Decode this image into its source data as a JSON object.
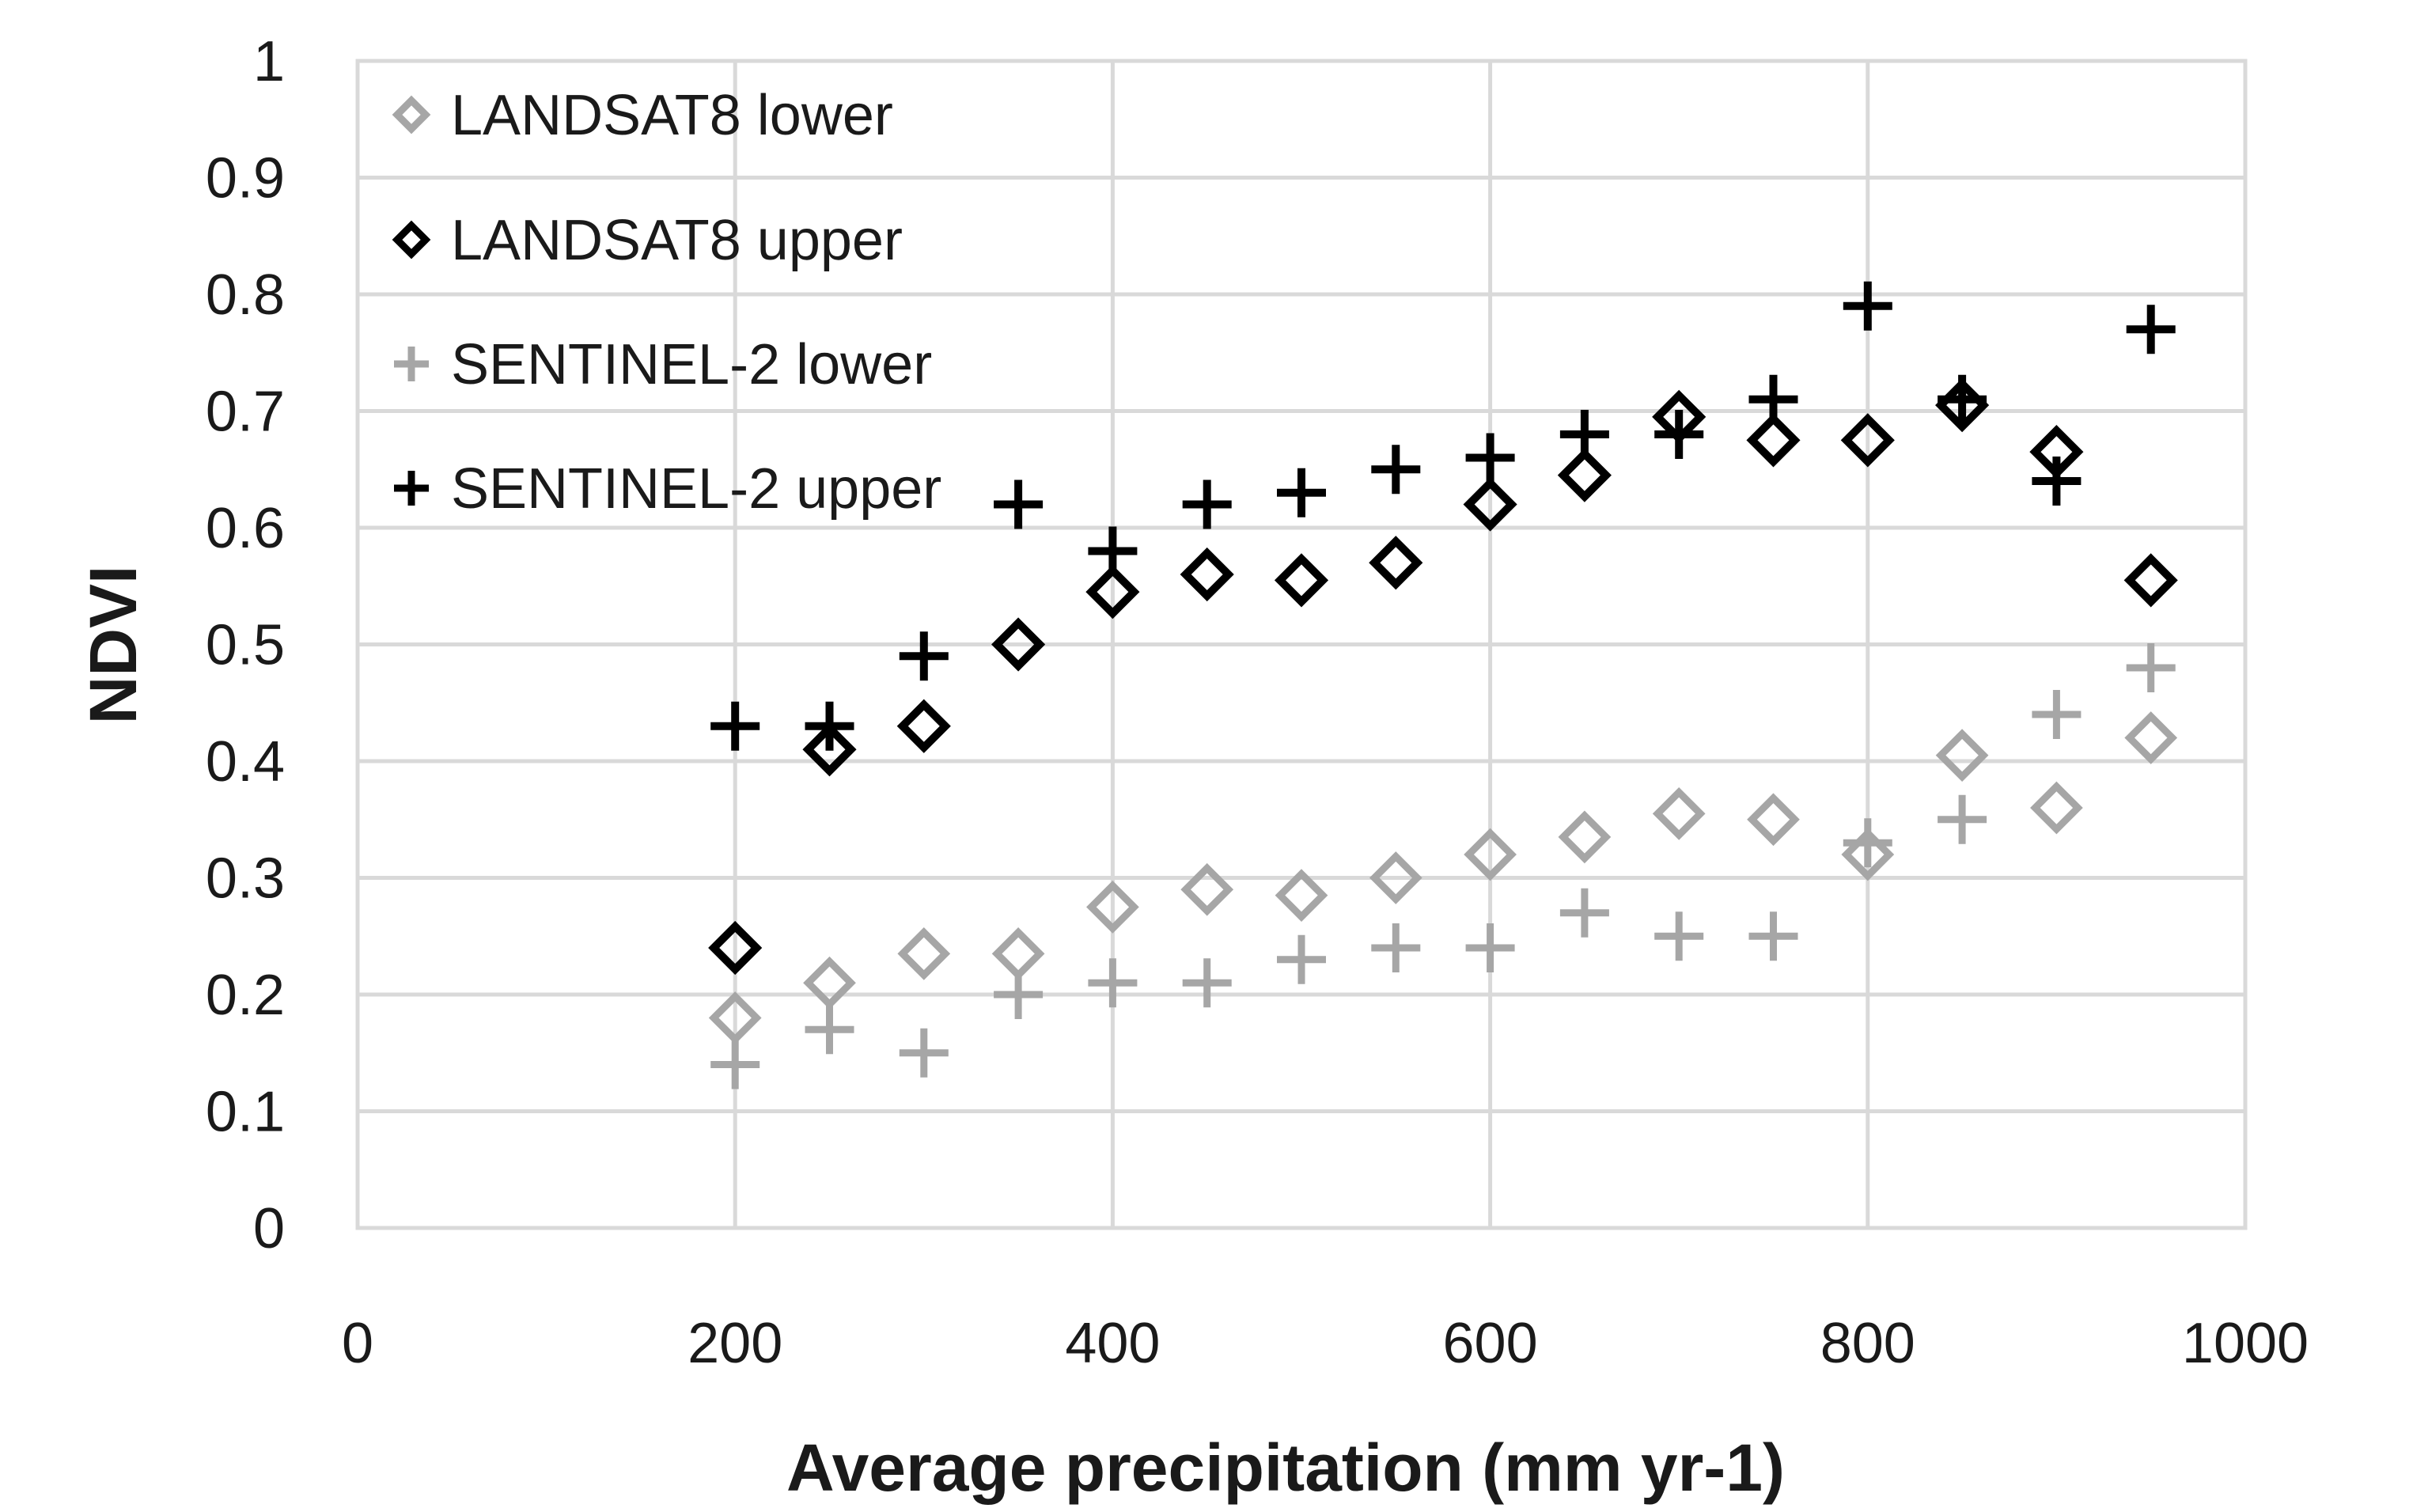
{
  "chart_data": {
    "type": "scatter",
    "title": "",
    "xlabel": "Average precipitation (mm yr-1)",
    "ylabel": "NDVI",
    "xlim": [
      0,
      1000
    ],
    "ylim": [
      0,
      1
    ],
    "x_ticks": [
      "0",
      "200",
      "400",
      "600",
      "800",
      "1000"
    ],
    "y_ticks": [
      "0",
      "0.1",
      "0.2",
      "0.3",
      "0.4",
      "0.5",
      "0.6",
      "0.7",
      "0.8",
      "0.9",
      "1"
    ],
    "grid": true,
    "legend_position": "top-left",
    "x": [
      200,
      250,
      300,
      350,
      400,
      450,
      500,
      550,
      600,
      650,
      700,
      750,
      800,
      850,
      900,
      950
    ],
    "series": [
      {
        "name": "LANDSAT8 lower",
        "marker": "diamond",
        "color": "#a6a6a6",
        "values": [
          0.18,
          0.21,
          0.235,
          0.235,
          0.275,
          0.29,
          0.285,
          0.3,
          0.32,
          0.335,
          0.355,
          0.35,
          0.32,
          0.405,
          0.36,
          0.42
        ]
      },
      {
        "name": "LANDSAT8 upper",
        "marker": "diamond",
        "color": "#000000",
        "values": [
          0.24,
          0.41,
          0.43,
          0.5,
          0.545,
          0.56,
          0.555,
          0.57,
          0.62,
          0.645,
          0.695,
          0.675,
          0.675,
          0.705,
          0.665,
          0.555
        ]
      },
      {
        "name": "SENTINEL-2 lower",
        "marker": "plus",
        "color": "#a6a6a6",
        "values": [
          0.14,
          0.17,
          0.15,
          0.2,
          0.21,
          0.21,
          0.23,
          0.24,
          0.24,
          0.27,
          0.25,
          0.25,
          0.33,
          0.35,
          0.44,
          0.48
        ]
      },
      {
        "name": "SENTINEL-2 upper",
        "marker": "plus",
        "color": "#000000",
        "values": [
          0.43,
          0.43,
          0.49,
          0.62,
          0.58,
          0.62,
          0.63,
          0.65,
          0.66,
          0.68,
          0.68,
          0.71,
          0.79,
          0.71,
          0.64,
          0.77
        ]
      }
    ]
  }
}
